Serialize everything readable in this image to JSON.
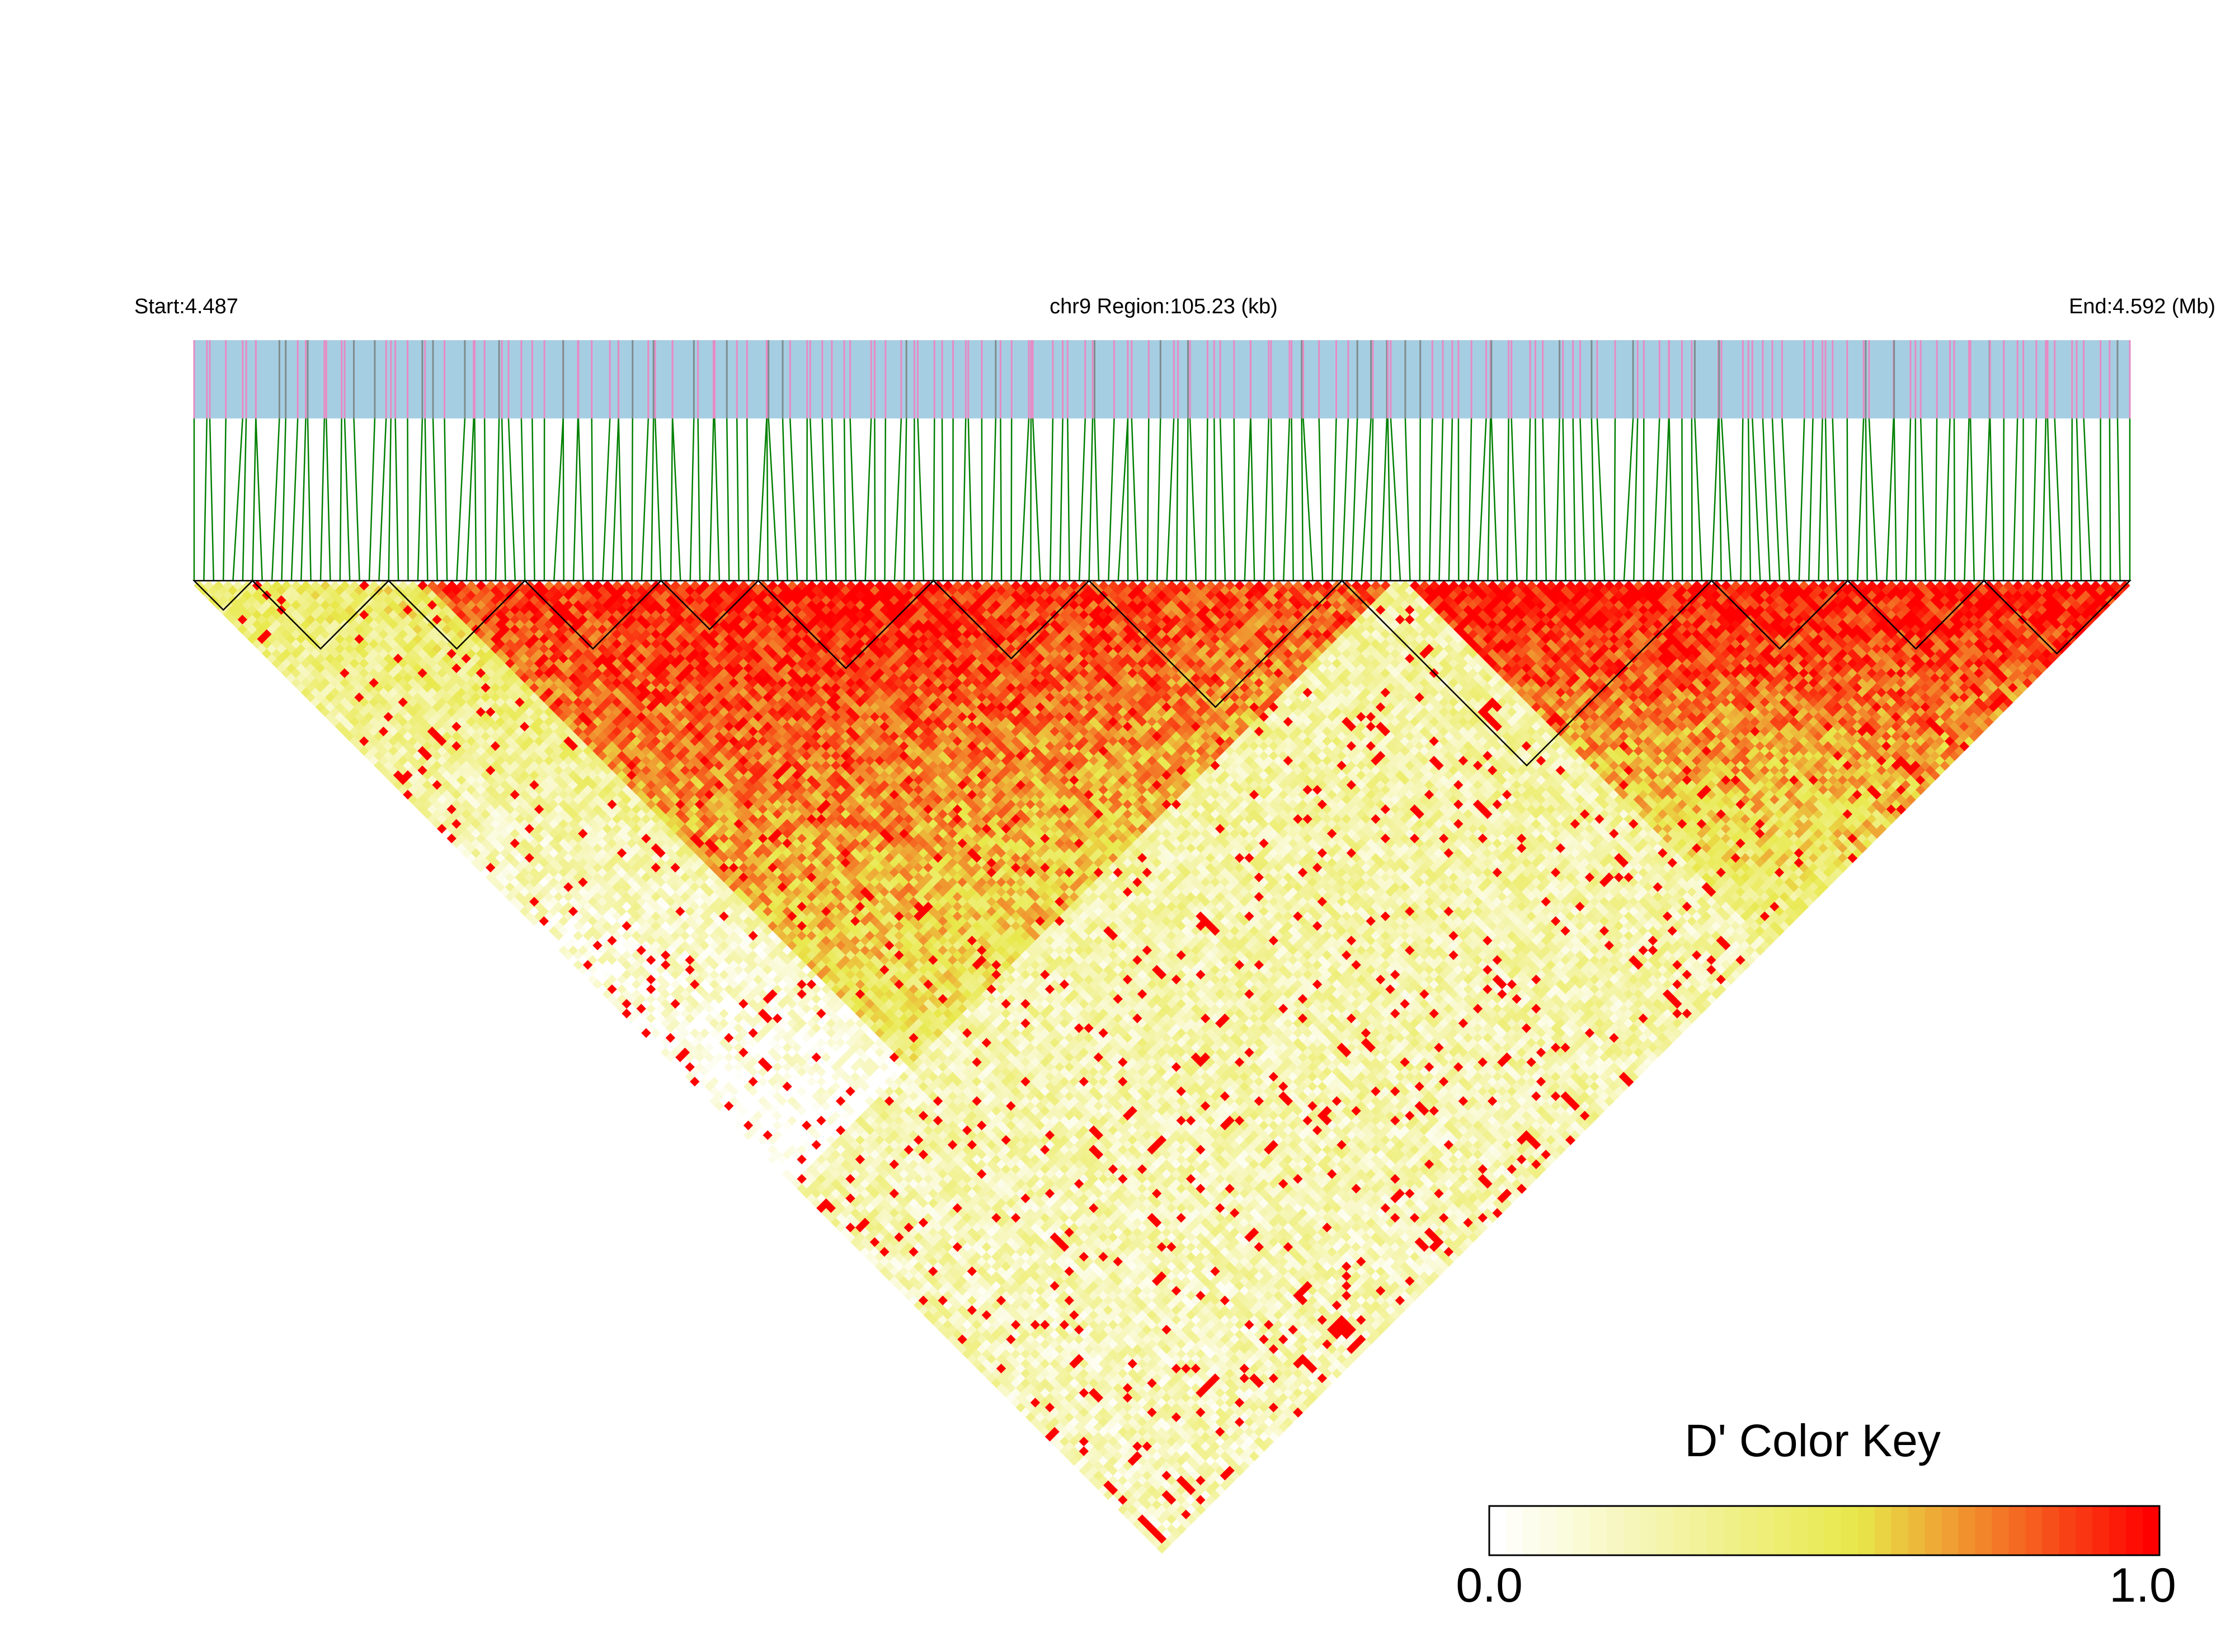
{
  "header": {
    "start_label": "Start:4.487",
    "region_label": "chr9 Region:105.23 (kb)",
    "end_label": "End:4.592 (Mb)"
  },
  "colors": {
    "track_background": "#a6cee3",
    "variant_tick": "#e78ac3",
    "dense_tick": "#7f8c8d",
    "connector_line": "#008000",
    "block_outline": "#000000",
    "key_low": "#ffffff",
    "key_mid": "#e8e84a",
    "key_high": "#ff0000"
  },
  "legend": {
    "title": "D' Color Key",
    "min_label": "0.0",
    "max_label": "1.0"
  },
  "chart_data": {
    "type": "heatmap",
    "subtype": "LD triangle (pairwise D')",
    "title": "",
    "chromosome": "chr9",
    "region_start_mb": 4.487,
    "region_end_mb": 4.592,
    "region_length_kb": 105.23,
    "value_range": [
      0.0,
      1.0
    ],
    "snp_count_estimate": 200,
    "high_ld_regions_description": [
      "strong LD (D' near 1.0) along diagonal from ~4.487 to ~4.550 Mb",
      "weak LD (D' 0.0–0.4) between left and right halves",
      "strong LD block near ~4.555–4.575 Mb"
    ],
    "haplotype_block_count": 12
  }
}
